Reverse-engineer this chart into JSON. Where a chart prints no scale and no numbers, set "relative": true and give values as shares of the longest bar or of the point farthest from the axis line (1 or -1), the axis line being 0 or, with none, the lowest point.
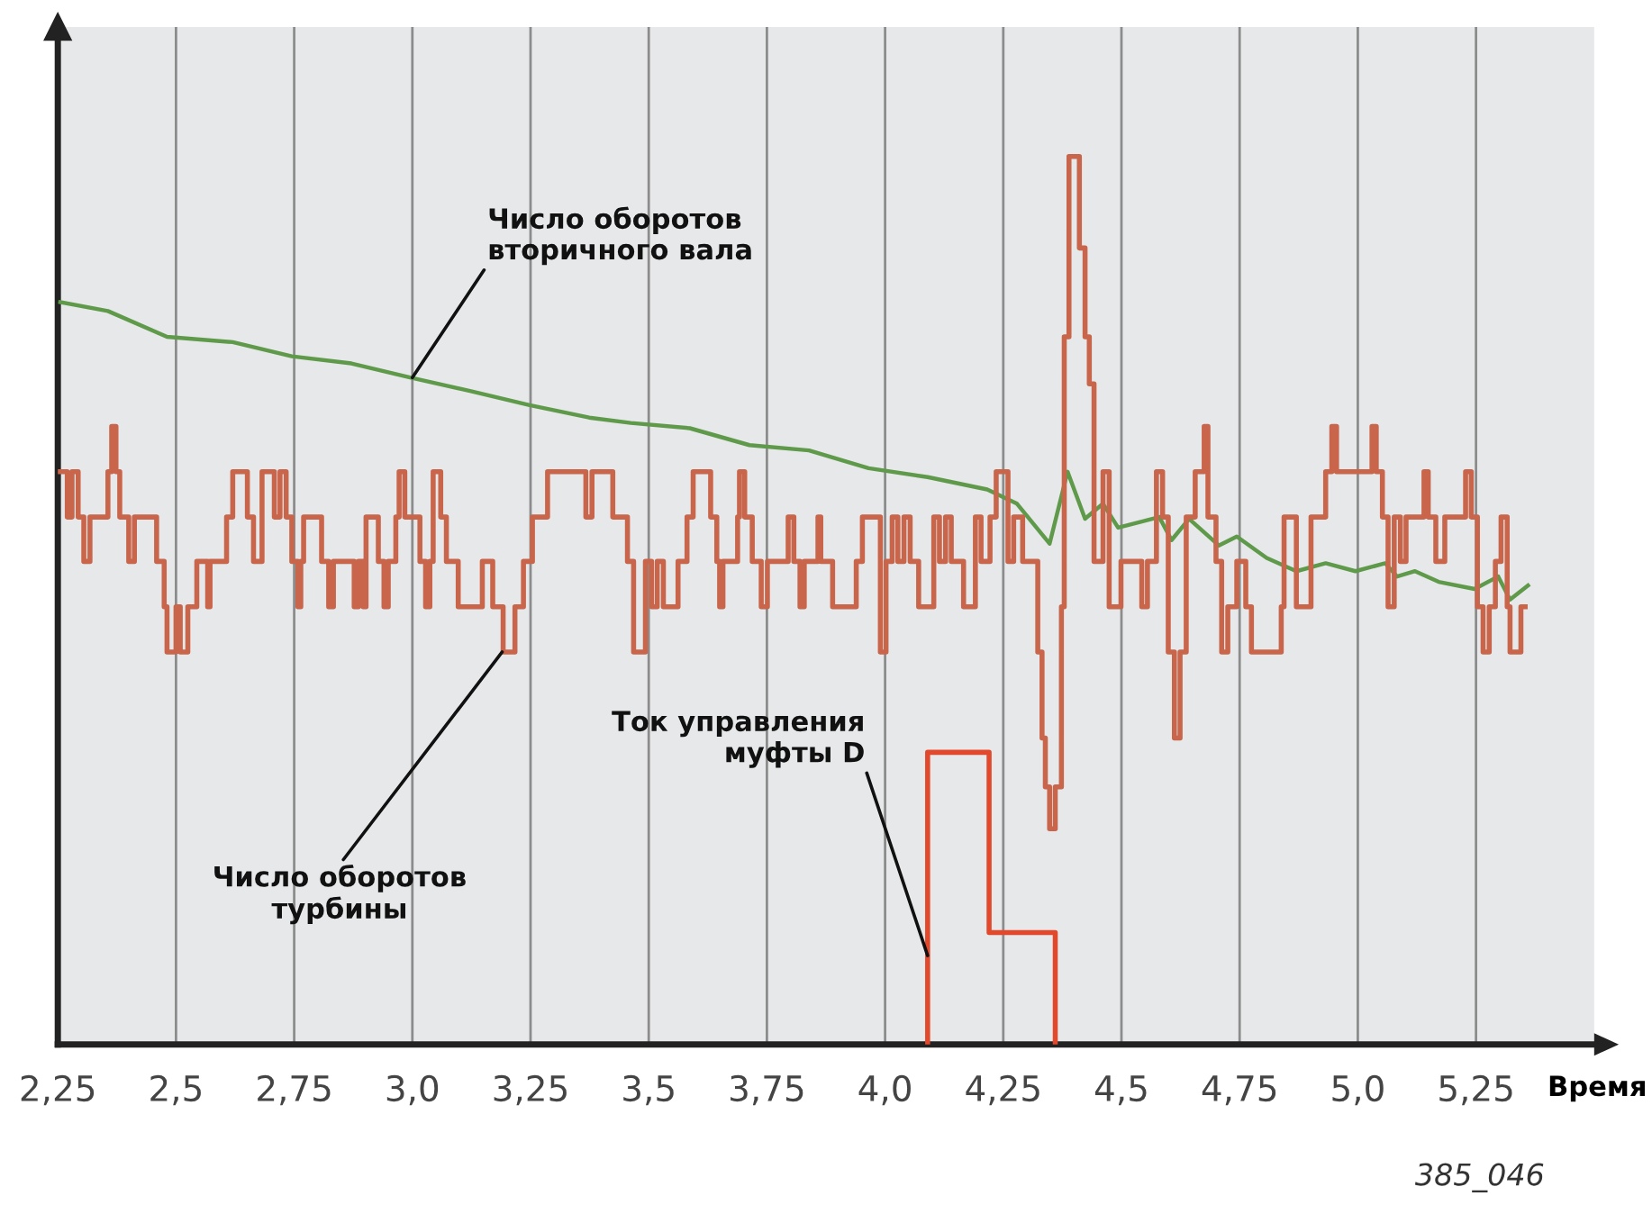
{
  "chart_data": {
    "type": "line",
    "relative": true,
    "xlabel": "Время",
    "grid": "x",
    "line_style": "solid",
    "marker": "none",
    "xlim": [
      2.25,
      5.5
    ],
    "xticks": [
      {
        "value": 2.25,
        "label": "2,25"
      },
      {
        "value": 2.5,
        "label": "2,5"
      },
      {
        "value": 2.75,
        "label": "2,75"
      },
      {
        "value": 3.0,
        "label": "3,0"
      },
      {
        "value": 3.25,
        "label": "3,25"
      },
      {
        "value": 3.5,
        "label": "3,5"
      },
      {
        "value": 3.75,
        "label": "3,75"
      },
      {
        "value": 4.0,
        "label": "4,0"
      },
      {
        "value": 4.25,
        "label": "4,25"
      },
      {
        "value": 4.5,
        "label": "4,5"
      },
      {
        "value": 4.75,
        "label": "4,75"
      },
      {
        "value": 5.0,
        "label": "5,0"
      },
      {
        "value": 5.25,
        "label": "5,25"
      }
    ],
    "series": [
      {
        "color": "#5f9a4a",
        "x": [
          2.255,
          2.356,
          2.481,
          2.62,
          2.745,
          2.871,
          2.997,
          3.122,
          3.248,
          3.374,
          3.462,
          3.587,
          3.713,
          3.839,
          3.965,
          4.09,
          4.216,
          4.279,
          4.348,
          4.386,
          4.423,
          4.461,
          4.493,
          4.58,
          4.606,
          4.643,
          4.706,
          4.744,
          4.807,
          4.87,
          4.932,
          4.995,
          5.058,
          5.083,
          5.121,
          5.171,
          5.247,
          5.297,
          5.322,
          5.36
        ],
        "values": [
          0.836,
          0.826,
          0.797,
          0.791,
          0.775,
          0.767,
          0.751,
          0.736,
          0.72,
          0.706,
          0.7,
          0.694,
          0.675,
          0.669,
          0.649,
          0.639,
          0.625,
          0.609,
          0.564,
          0.645,
          0.592,
          0.609,
          0.582,
          0.594,
          0.568,
          0.592,
          0.562,
          0.572,
          0.548,
          0.533,
          0.542,
          0.533,
          0.542,
          0.527,
          0.533,
          0.521,
          0.513,
          0.527,
          0.501,
          0.517
        ]
      },
      {
        "type": "step",
        "color": "#c8654a",
        "x": [
          2.255,
          2.27,
          2.28,
          2.293,
          2.305,
          2.318,
          2.356,
          2.364,
          2.373,
          2.381,
          2.4,
          2.412,
          2.459,
          2.475,
          2.481,
          2.5,
          2.509,
          2.525,
          2.544,
          2.567,
          2.572,
          2.607,
          2.62,
          2.651,
          2.664,
          2.682,
          2.708,
          2.72,
          2.733,
          2.745,
          2.758,
          2.764,
          2.77,
          2.808,
          2.823,
          2.833,
          2.877,
          2.886,
          2.896,
          2.902,
          2.928,
          2.94,
          2.949,
          2.965,
          2.972,
          2.984,
          3.016,
          3.028,
          3.037,
          3.044,
          3.06,
          3.072,
          3.097,
          3.148,
          3.17,
          3.192,
          3.217,
          3.235,
          3.254,
          3.286,
          3.367,
          3.38,
          3.424,
          3.455,
          3.468,
          3.493,
          3.506,
          3.518,
          3.531,
          3.562,
          3.581,
          3.594,
          3.631,
          3.644,
          3.65,
          3.657,
          3.688,
          3.692,
          3.703,
          3.719,
          3.738,
          3.751,
          3.795,
          3.807,
          3.82,
          3.829,
          3.858,
          3.864,
          3.889,
          3.939,
          3.952,
          3.99,
          4.002,
          4.015,
          4.027,
          4.04,
          4.053,
          4.071,
          4.103,
          4.115,
          4.128,
          4.14,
          4.166,
          4.191,
          4.203,
          4.222,
          4.235,
          4.26,
          4.272,
          4.291,
          4.323,
          4.332,
          4.339,
          4.348,
          4.36,
          4.373,
          4.379,
          4.389,
          4.411,
          4.423,
          4.432,
          4.442,
          4.461,
          4.474,
          4.499,
          4.543,
          4.555,
          4.574,
          4.587,
          4.599,
          4.612,
          4.624,
          4.637,
          4.656,
          4.675,
          4.683,
          4.7,
          4.712,
          4.725,
          4.744,
          4.763,
          4.775,
          4.838,
          4.844,
          4.87,
          4.901,
          4.932,
          4.945,
          4.955,
          5.03,
          5.039,
          5.052,
          5.064,
          5.077,
          5.09,
          5.102,
          5.14,
          5.149,
          5.165,
          5.184,
          5.228,
          5.24,
          5.253,
          5.265,
          5.278,
          5.291,
          5.303,
          5.316,
          5.322,
          5.345,
          5.354
        ],
        "values": [
          0.645,
          0.594,
          0.645,
          0.594,
          0.544,
          0.594,
          0.645,
          0.696,
          0.645,
          0.594,
          0.544,
          0.594,
          0.544,
          0.493,
          0.442,
          0.493,
          0.442,
          0.493,
          0.544,
          0.493,
          0.544,
          0.594,
          0.645,
          0.594,
          0.544,
          0.645,
          0.594,
          0.645,
          0.594,
          0.544,
          0.493,
          0.544,
          0.594,
          0.544,
          0.493,
          0.544,
          0.493,
          0.544,
          0.493,
          0.594,
          0.544,
          0.493,
          0.544,
          0.594,
          0.645,
          0.594,
          0.544,
          0.493,
          0.544,
          0.645,
          0.594,
          0.544,
          0.493,
          0.544,
          0.493,
          0.442,
          0.493,
          0.544,
          0.594,
          0.645,
          0.594,
          0.645,
          0.594,
          0.544,
          0.442,
          0.544,
          0.493,
          0.544,
          0.493,
          0.544,
          0.594,
          0.645,
          0.594,
          0.544,
          0.493,
          0.544,
          0.594,
          0.645,
          0.594,
          0.544,
          0.493,
          0.544,
          0.594,
          0.544,
          0.493,
          0.544,
          0.594,
          0.544,
          0.493,
          0.544,
          0.594,
          0.442,
          0.544,
          0.594,
          0.544,
          0.594,
          0.544,
          0.493,
          0.594,
          0.544,
          0.594,
          0.544,
          0.493,
          0.594,
          0.544,
          0.594,
          0.645,
          0.544,
          0.594,
          0.544,
          0.442,
          0.345,
          0.29,
          0.243,
          0.29,
          0.493,
          0.797,
          1.0,
          0.897,
          0.797,
          0.744,
          0.544,
          0.645,
          0.493,
          0.544,
          0.493,
          0.544,
          0.645,
          0.594,
          0.442,
          0.345,
          0.442,
          0.594,
          0.645,
          0.696,
          0.594,
          0.544,
          0.442,
          0.493,
          0.544,
          0.493,
          0.442,
          0.493,
          0.594,
          0.493,
          0.594,
          0.645,
          0.696,
          0.645,
          0.696,
          0.645,
          0.594,
          0.493,
          0.594,
          0.544,
          0.594,
          0.645,
          0.594,
          0.544,
          0.594,
          0.645,
          0.594,
          0.493,
          0.442,
          0.493,
          0.544,
          0.594,
          0.493,
          0.442,
          0.493,
          0.493
        ]
      },
      {
        "type": "step",
        "color": "#e2482c",
        "x": [
          4.09,
          4.09,
          4.22,
          4.36,
          4.36
        ],
        "values": [
          0,
          0.329,
          0.126,
          0.126,
          0
        ]
      }
    ],
    "annotations": [
      {
        "text": "Число оборотов\nвторичного вала",
        "x": 3.0,
        "y": 0.751
      },
      {
        "text": "Число оборотов\nтурбины",
        "x": 3.19,
        "y": 0.442
      },
      {
        "text": "Ток управления\nмуфты D",
        "x": 4.09,
        "y": 0.1
      },
      "385_046"
    ]
  }
}
